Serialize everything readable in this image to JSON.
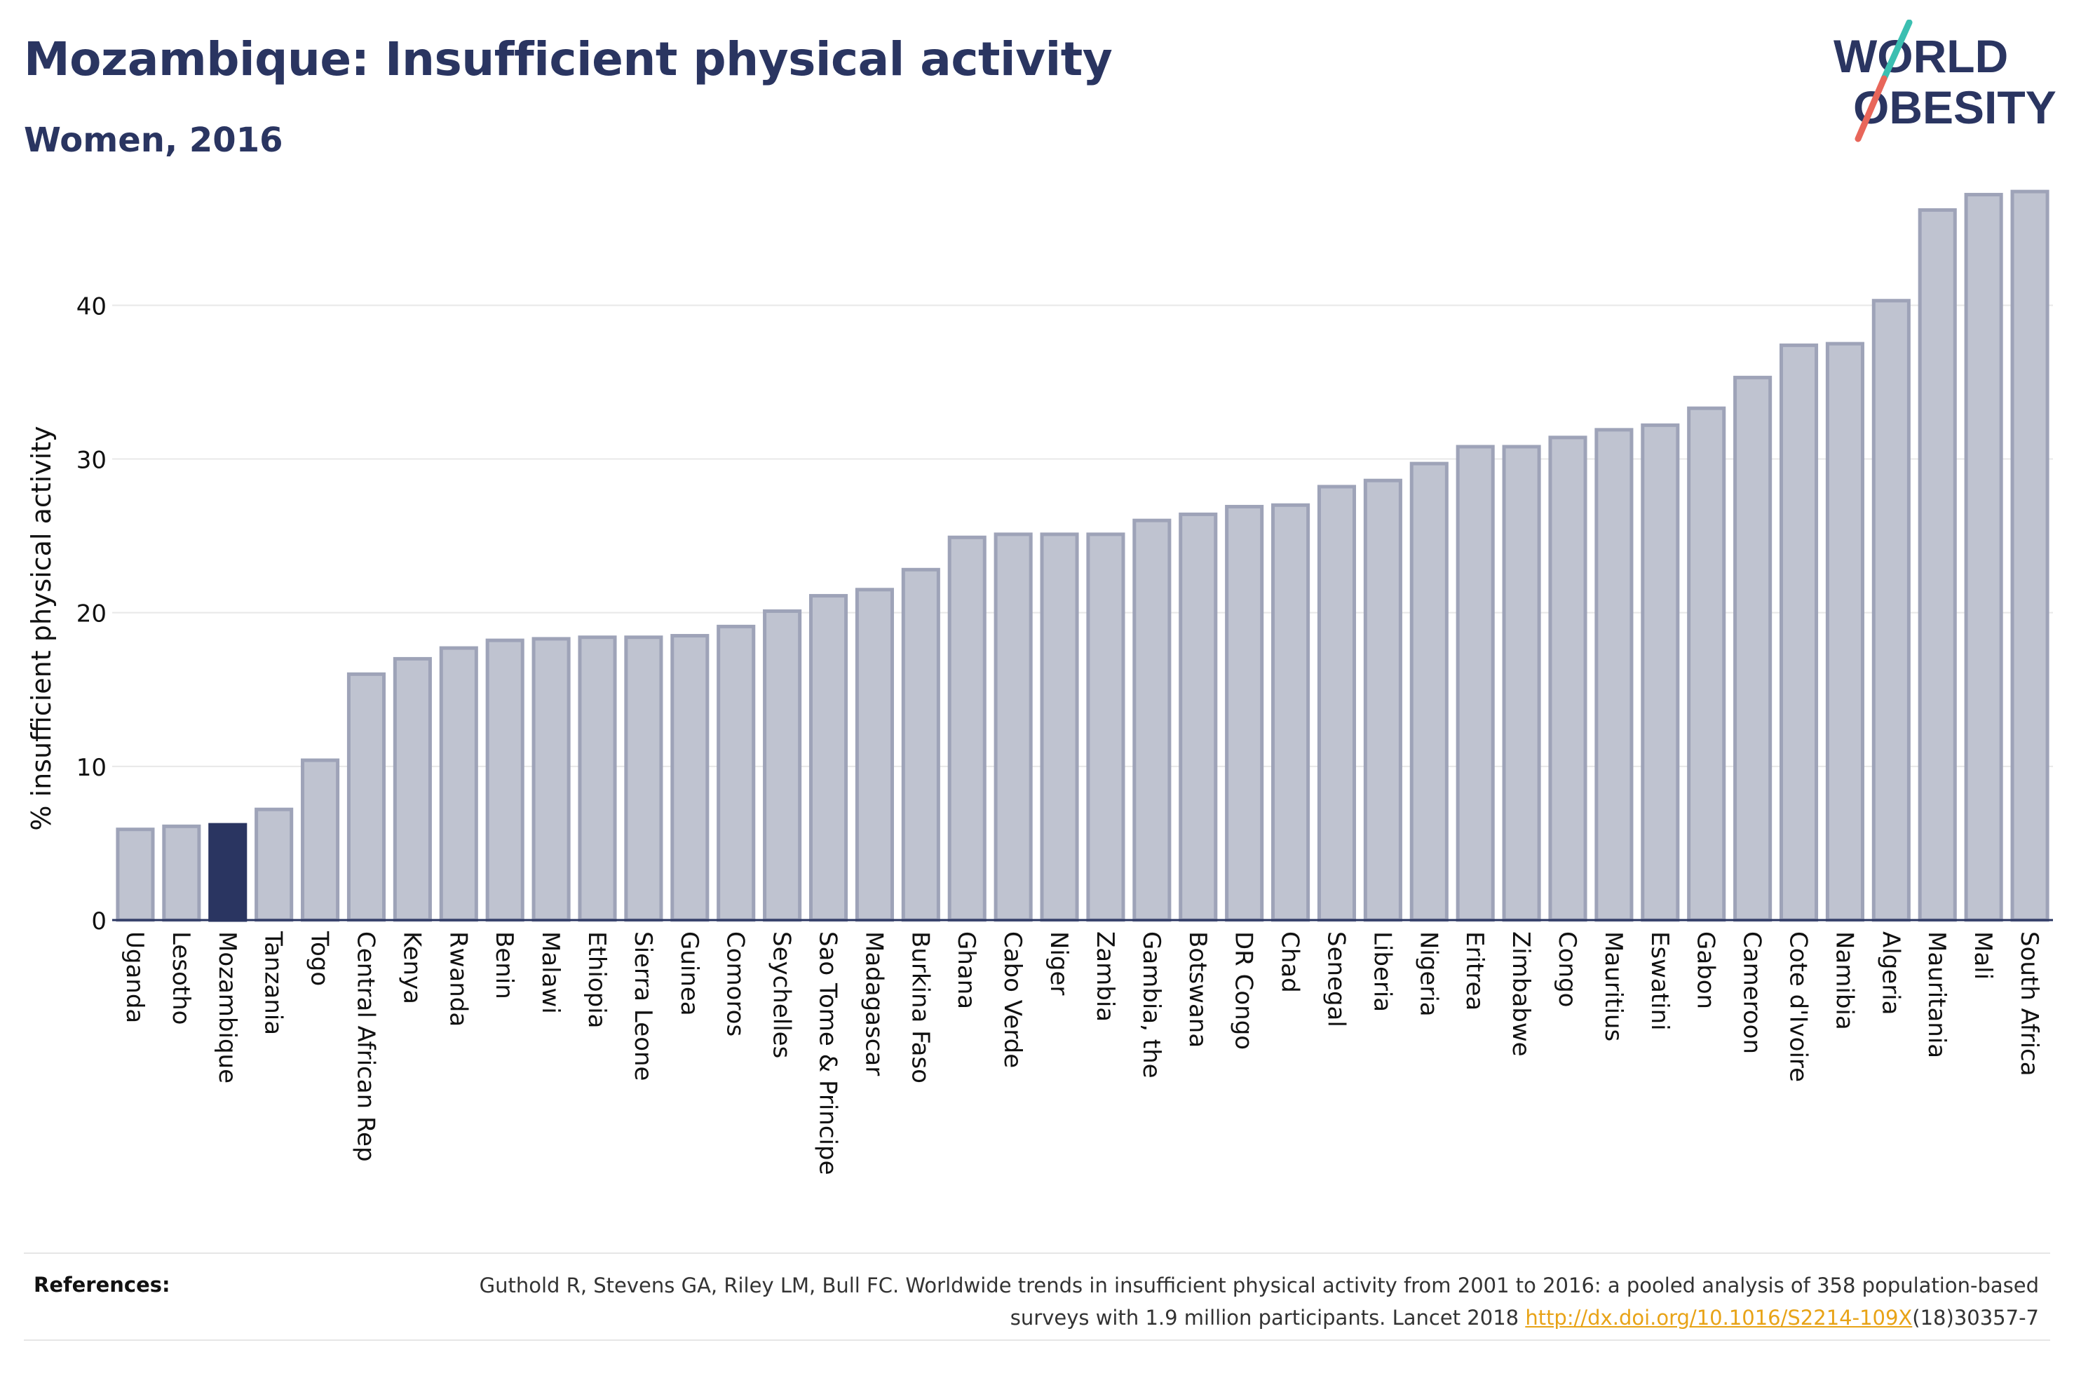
{
  "header": {
    "title": "Mozambique: Insufficient physical activity",
    "subtitle": "Women, 2016"
  },
  "logo": {
    "line1": "WORLD",
    "line2": "OBESITY",
    "colors": {
      "text": "#2a3561",
      "teal": "#3bbfb1",
      "coral": "#e8665a"
    }
  },
  "chart_data": {
    "type": "bar",
    "title": "",
    "xlabel": "",
    "ylabel": "% insufficient physical activity",
    "ylim": [
      0,
      48
    ],
    "yticks": [
      0,
      10,
      20,
      30,
      40
    ],
    "grid": true,
    "highlight": "Mozambique",
    "colors": {
      "bar": "#bfc3d0",
      "bar_border": "#9ea3b8",
      "highlight": "#2a3561",
      "grid": "#e8e8e8",
      "axis": "#2a3561"
    },
    "categories": [
      "Uganda",
      "Lesotho",
      "Mozambique",
      "Tanzania",
      "Togo",
      "Central African Rep",
      "Kenya",
      "Rwanda",
      "Benin",
      "Malawi",
      "Ethiopia",
      "Sierra Leone",
      "Guinea",
      "Comoros",
      "Seychelles",
      "Sao Tome & Principe",
      "Madagascar",
      "Burkina Faso",
      "Ghana",
      "Cabo Verde",
      "Niger",
      "Zambia",
      "Gambia, the",
      "Botswana",
      "DR Congo",
      "Chad",
      "Senegal",
      "Liberia",
      "Nigeria",
      "Eritrea",
      "Zimbabwe",
      "Congo",
      "Mauritius",
      "Eswatini",
      "Gabon",
      "Cameroon",
      "Cote d'Ivoire",
      "Namibia",
      "Algeria",
      "Mauritania",
      "Mali",
      "South Africa"
    ],
    "values": [
      5.9,
      6.1,
      6.2,
      7.2,
      10.4,
      16.0,
      17.0,
      17.7,
      18.2,
      18.3,
      18.4,
      18.4,
      18.5,
      19.1,
      20.1,
      21.1,
      21.5,
      22.8,
      24.9,
      25.1,
      25.1,
      25.1,
      26.0,
      26.4,
      26.9,
      27.0,
      28.2,
      28.6,
      29.7,
      30.8,
      30.8,
      31.4,
      31.9,
      32.2,
      33.3,
      35.3,
      37.4,
      37.5,
      40.3,
      46.2,
      47.2,
      47.4
    ]
  },
  "references": {
    "label": "References:",
    "text_before_link": "Guthold R, Stevens GA, Riley LM, Bull FC. Worldwide trends in insufficient physical activity from 2001 to 2016: a pooled analysis of 358 population-based surveys with 1.9 million participants. Lancet 2018 ",
    "link_text": "http://dx.doi.org/10.1016/S2214-109X",
    "text_after_link": "(18)30357-7"
  }
}
